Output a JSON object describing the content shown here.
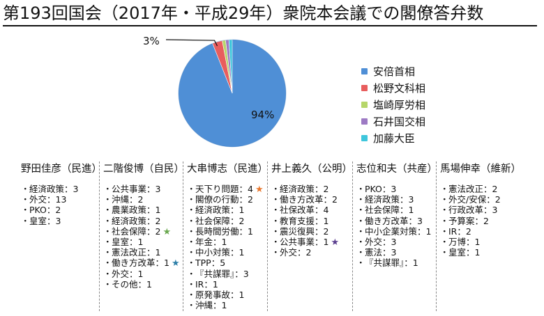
{
  "title": "第193回国会（2017年・平成29年）衆院本会議での閣僚答弁数",
  "chart_data": {
    "type": "pie",
    "slices": [
      {
        "label": "安倍首相",
        "value": 94,
        "color": "#4f8fd6"
      },
      {
        "label": "松野文科相",
        "value": 3,
        "color": "#e85d5d"
      },
      {
        "label": "塩崎厚労相",
        "value": 1,
        "color": "#b6d66a"
      },
      {
        "label": "石井国交相",
        "value": 1,
        "color": "#9d7ac4"
      },
      {
        "label": "加藤大臣",
        "value": 1,
        "color": "#3ec6dc"
      }
    ],
    "data_labels": {
      "main": "94%",
      "callout": "3%"
    },
    "legend_position": "right"
  },
  "members": [
    {
      "name": "野田佳彦（民進）",
      "items": [
        {
          "text": "経済政策：3"
        },
        {
          "text": "外交：13"
        },
        {
          "text": "PKO：2"
        },
        {
          "text": "皇室：3"
        }
      ]
    },
    {
      "name": "二階俊博（自民）",
      "items": [
        {
          "text": "公共事業：3"
        },
        {
          "text": "沖縄：2"
        },
        {
          "text": "農業政策：1"
        },
        {
          "text": "経済政策：2"
        },
        {
          "text": "社会保障：2",
          "star": "★",
          "star_color": "#6aa84f"
        },
        {
          "text": "皇室：1"
        },
        {
          "text": "憲法改正：1"
        },
        {
          "text": "働き方改革：1",
          "star": "★",
          "star_color": "#2d7fa8"
        },
        {
          "text": "外交：1"
        },
        {
          "text": "その他：1"
        }
      ]
    },
    {
      "name": "大串博志（民進）",
      "items": [
        {
          "text": "天下り問題：4",
          "star": "★",
          "star_color": "#e8762b"
        },
        {
          "text": "閣僚の行動：2"
        },
        {
          "text": "経済政策：1"
        },
        {
          "text": "社会保障：2"
        },
        {
          "text": "長時間労働：1"
        },
        {
          "text": "年金：1"
        },
        {
          "text": "中小対策：1"
        },
        {
          "text": "TPP：5"
        },
        {
          "text": "『共謀罪』：3"
        },
        {
          "text": "IR：1"
        },
        {
          "text": "原発事故：1"
        },
        {
          "text": "沖縄：1"
        }
      ]
    },
    {
      "name": "井上義久（公明）",
      "items": [
        {
          "text": "経済政策：2"
        },
        {
          "text": "働き方改革：2"
        },
        {
          "text": "社保改革：4"
        },
        {
          "text": "教育支援：1"
        },
        {
          "text": "震災復興：2"
        },
        {
          "text": "公共事業：1",
          "star": "★",
          "star_color": "#5b3f8f"
        },
        {
          "text": "外交：2"
        }
      ]
    },
    {
      "name": "志位和夫（共産）",
      "items": [
        {
          "text": "PKO：3"
        },
        {
          "text": "経済政策：3"
        },
        {
          "text": "社会保障：1"
        },
        {
          "text": "働き方改革：3"
        },
        {
          "text": "中小企業対策：1"
        },
        {
          "text": "外交：3"
        },
        {
          "text": "憲法：3"
        },
        {
          "text": "『共謀罪』：1"
        }
      ]
    },
    {
      "name": "馬場伸幸（維新）",
      "items": [
        {
          "text": "憲法改正：2"
        },
        {
          "text": "外交/安保：2"
        },
        {
          "text": "行政改革：3"
        },
        {
          "text": "予算案：2"
        },
        {
          "text": "IR：2"
        },
        {
          "text": "万博：1"
        },
        {
          "text": "皇室：1"
        }
      ]
    }
  ]
}
